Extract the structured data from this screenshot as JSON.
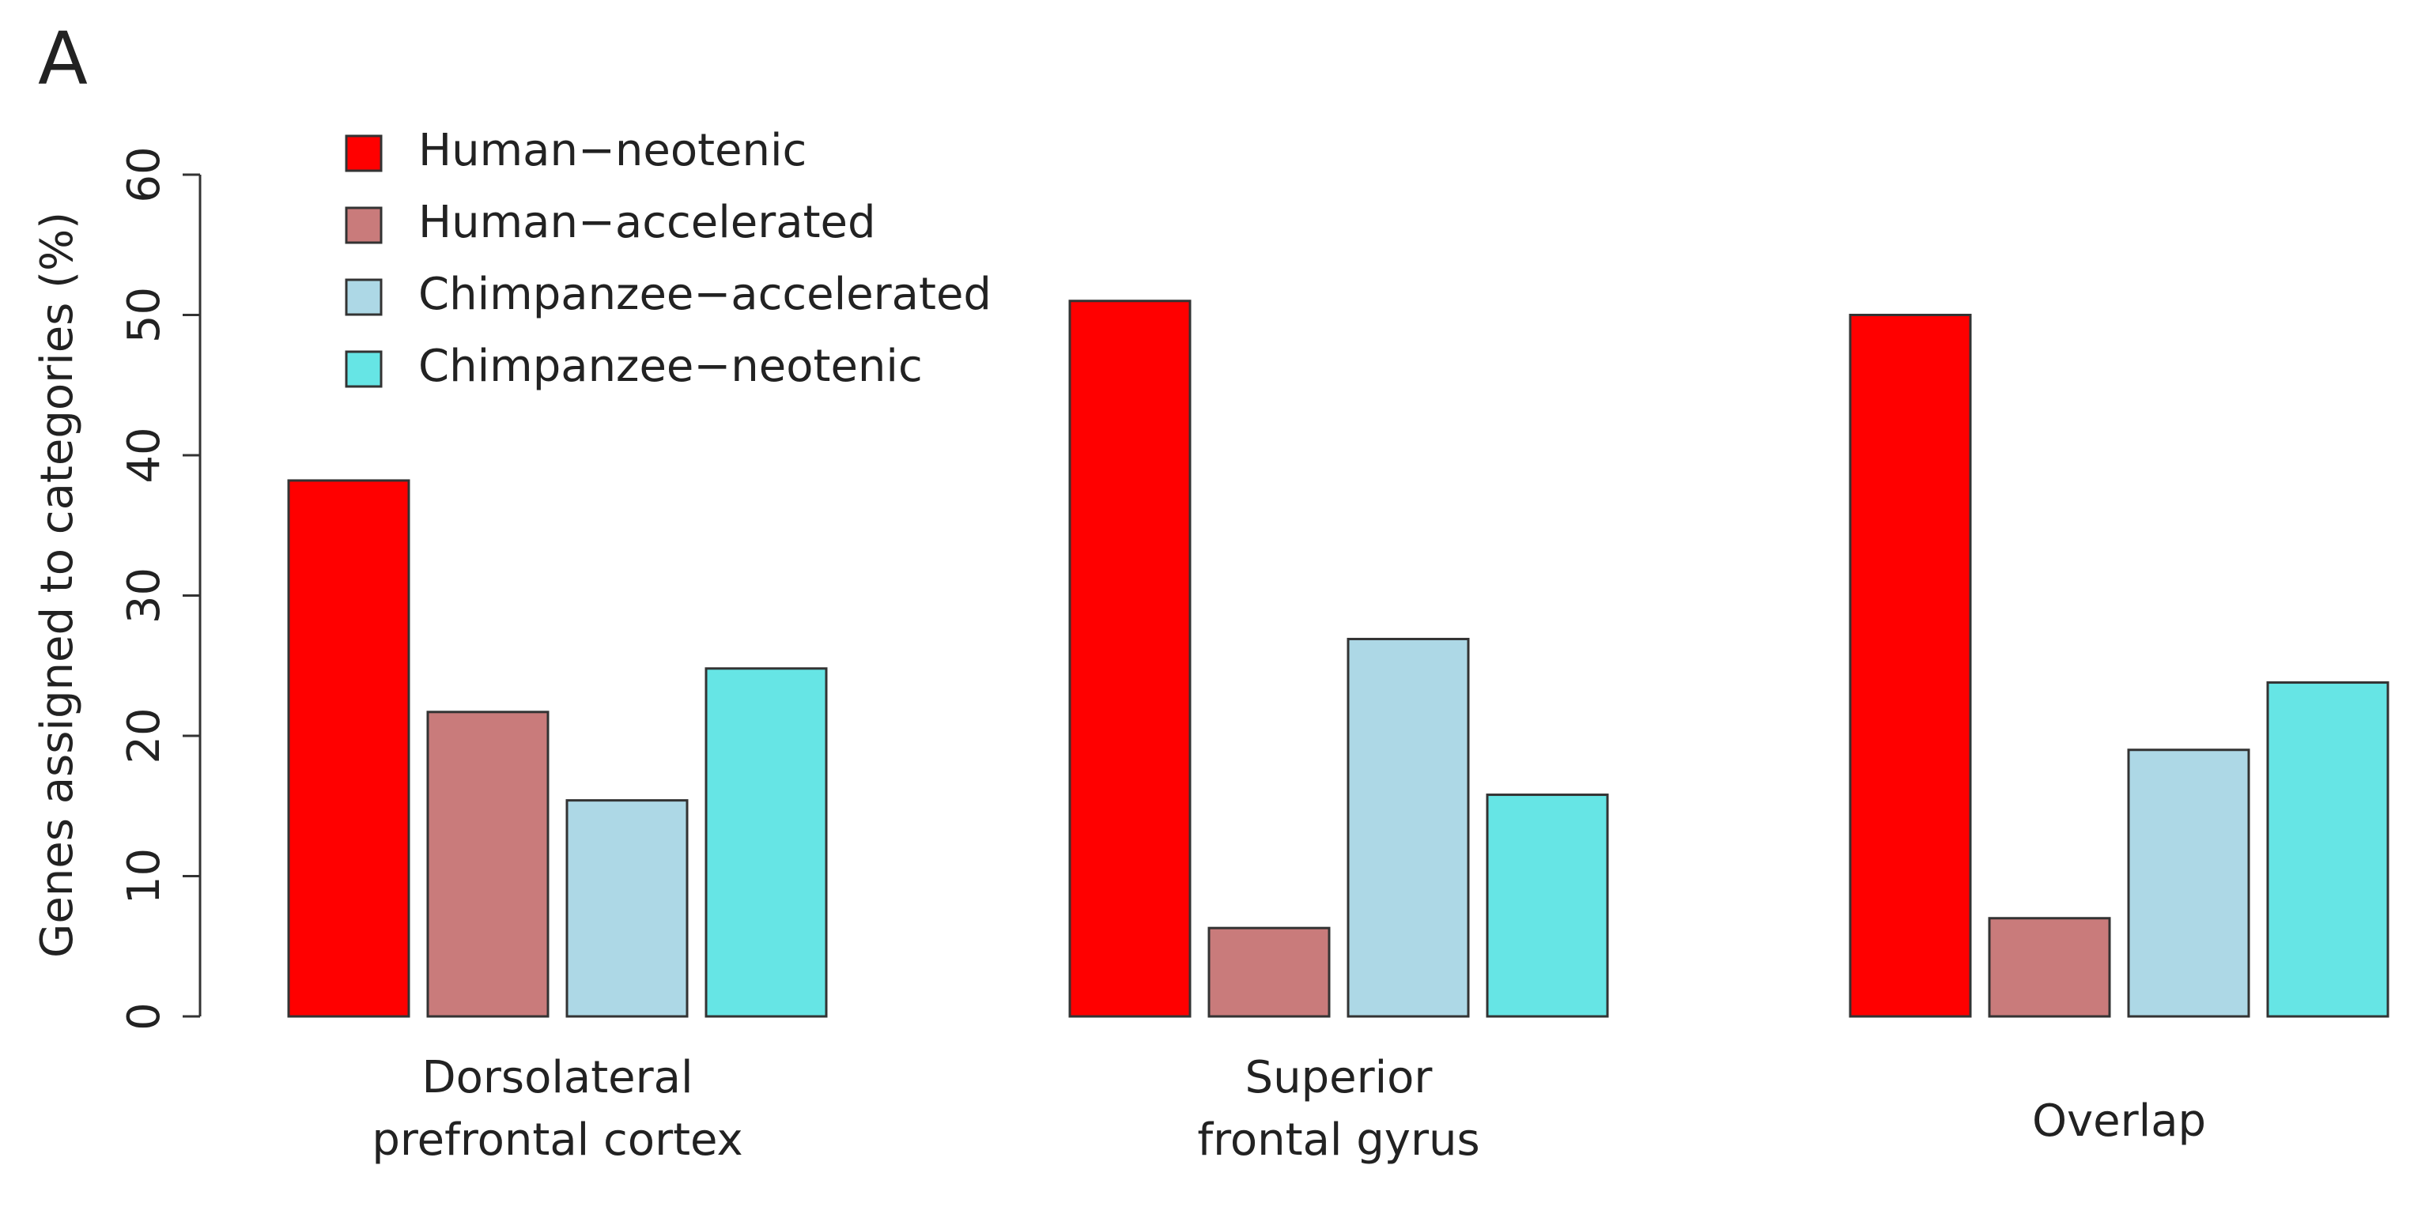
{
  "chart_data": {
    "type": "bar",
    "panel_label": "A",
    "y_label": "Genes assigned to categories (%)",
    "categories": [
      [
        "Dorsolateral",
        "prefrontal cortex"
      ],
      [
        "Superior",
        "frontal gyrus"
      ],
      [
        "Overlap"
      ]
    ],
    "series": [
      {
        "name": "Human−neotenic",
        "color": "#ff0000",
        "values": [
          38.2,
          51.0,
          50.0
        ]
      },
      {
        "name": "Human−accelerated",
        "color": "#c97b7b",
        "values": [
          21.7,
          6.3,
          7.0
        ]
      },
      {
        "name": "Chimpanzee−accelerated",
        "color": "#add8e6",
        "values": [
          15.4,
          26.9,
          19.0
        ]
      },
      {
        "name": "Chimpanzee−neotenic",
        "color": "#66e5e5",
        "values": [
          24.8,
          15.8,
          23.8
        ]
      }
    ],
    "ylim": [
      0,
      60
    ],
    "yticks": [
      0,
      10,
      20,
      30,
      40,
      50,
      60
    ]
  }
}
